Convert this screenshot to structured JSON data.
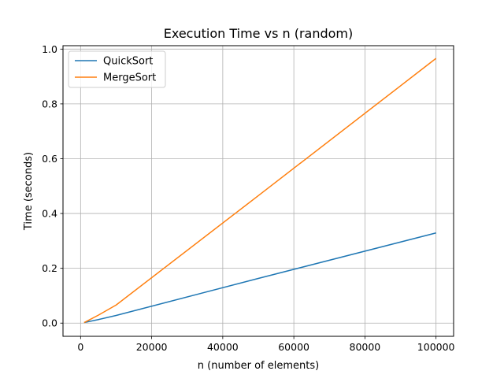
{
  "chart_data": {
    "type": "line",
    "title": "Execution Time vs n (random)",
    "xlabel": "n (number of elements)",
    "ylabel": "Time (seconds)",
    "xlim": [
      -4950,
      104950
    ],
    "ylim": [
      -0.0482,
      1.0124
    ],
    "xticks": [
      0,
      20000,
      40000,
      60000,
      80000,
      100000
    ],
    "yticks": [
      0.0,
      0.2,
      0.4,
      0.6,
      0.8,
      1.0
    ],
    "xtick_labels": [
      "0",
      "20000",
      "40000",
      "60000",
      "80000",
      "100000"
    ],
    "ytick_labels": [
      "0.0",
      "0.2",
      "0.4",
      "0.6",
      "0.8",
      "1.0"
    ],
    "grid": true,
    "legend_position": "upper-left",
    "x": [
      1000,
      5000,
      10000,
      50000,
      100000
    ],
    "series": [
      {
        "name": "QuickSort",
        "color": "#1f77b4",
        "values": [
          0.002,
          0.013,
          0.028,
          0.163,
          0.329
        ]
      },
      {
        "name": "MergeSort",
        "color": "#ff7f0e",
        "values": [
          0.002,
          0.029,
          0.066,
          0.465,
          0.966
        ]
      }
    ]
  }
}
